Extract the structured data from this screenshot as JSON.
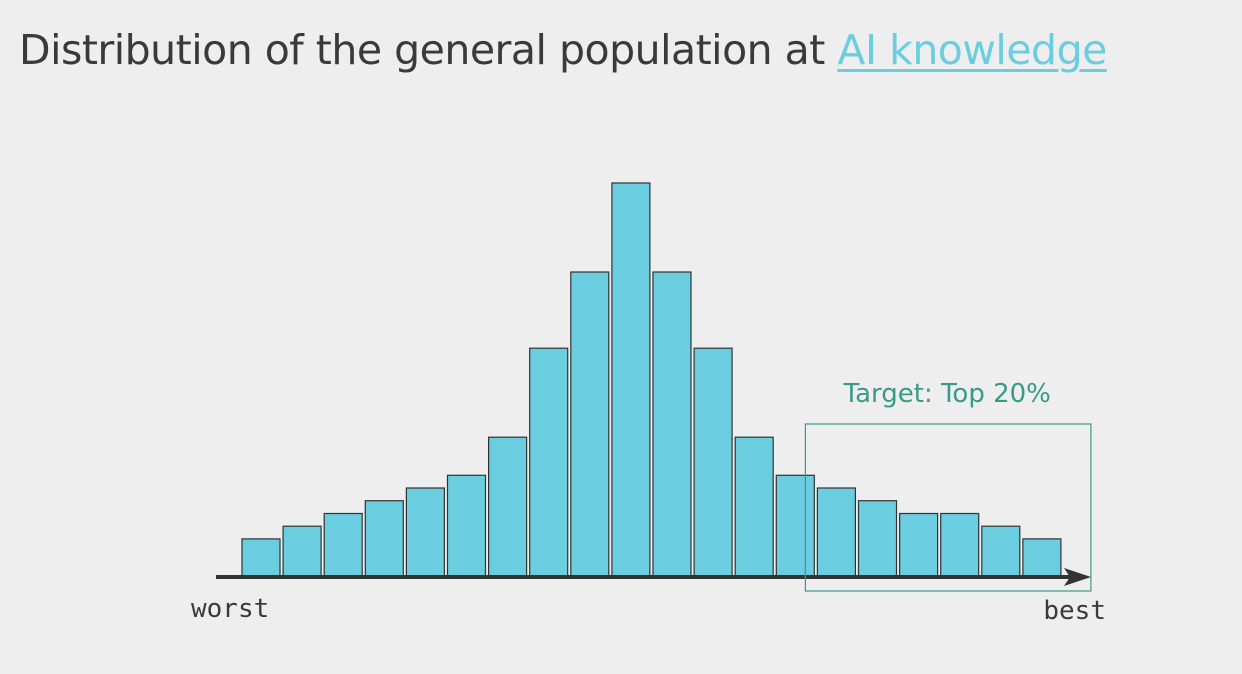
{
  "title": {
    "prefix": "Distribution of the general population at ",
    "highlight": "AI knowledge"
  },
  "chart_data": {
    "type": "bar",
    "title": "Distribution of the general population at AI knowledge",
    "xlabel_left": "worst",
    "xlabel_right": "best",
    "values": [
      3,
      4,
      5,
      6,
      7,
      8,
      11,
      18,
      24,
      31,
      24,
      18,
      11,
      8,
      7,
      6,
      5,
      5,
      4,
      3
    ],
    "ylim": [
      0,
      31
    ],
    "annotation": {
      "label": "Target: Top 20%",
      "first_bar_index": 14,
      "last_bar_index": 19
    },
    "colors": {
      "bar_fill": "#6bcde0",
      "bar_stroke": "#333333",
      "axis": "#333333",
      "annotation": "#3a9a8a",
      "highlight": "#6bcde0"
    }
  }
}
